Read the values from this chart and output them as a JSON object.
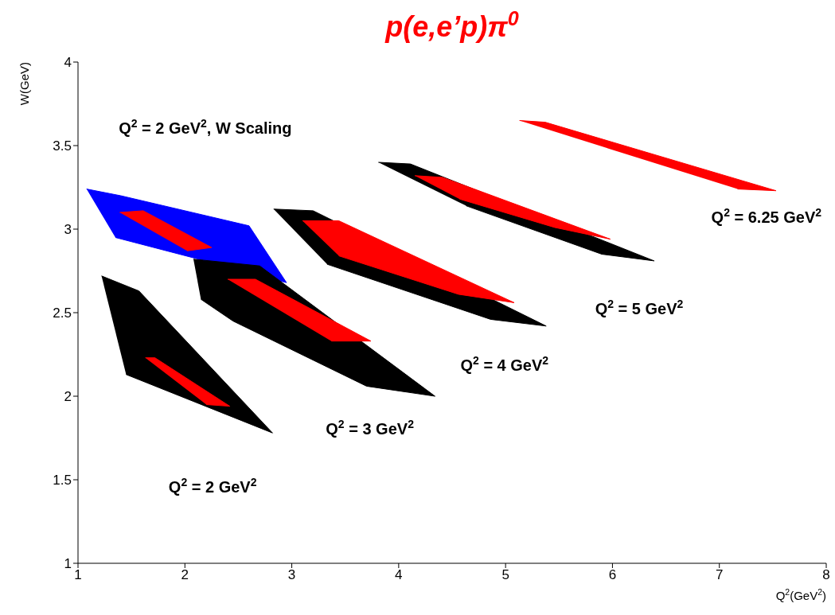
{
  "chart_data": {
    "type": "line",
    "title": "p(e,e’p)π$^{0}$",
    "xlabel": "Q$^{2}$(GeV$^{2}$)",
    "ylabel": "W(GeV)",
    "xlim": [
      1,
      8
    ],
    "xticks": [
      1,
      2,
      3,
      4,
      5,
      6,
      7,
      8
    ],
    "ylim": [
      1,
      4
    ],
    "yticks": [
      1,
      1.5,
      2,
      2.5,
      3,
      3.5,
      4
    ],
    "grid": false,
    "marker": "none",
    "series": [
      {
        "color": "#000000",
        "x": [
          1.22,
          1.57,
          2.82,
          1.45
        ],
        "values": [
          2.72,
          2.63,
          1.78,
          2.13
        ]
      },
      {
        "color": "#ff0000",
        "x": [
          1.63,
          1.72,
          2.42,
          2.2
        ],
        "values": [
          2.23,
          2.23,
          1.94,
          1.95
        ]
      },
      {
        "color": "#0000ff",
        "x": [
          1.08,
          1.4,
          2.6,
          2.95,
          2.25,
          1.35
        ],
        "values": [
          3.24,
          3.2,
          3.02,
          2.68,
          2.8,
          2.95
        ]
      },
      {
        "color": "#ff0000",
        "x": [
          1.39,
          1.61,
          2.25,
          2.02
        ],
        "values": [
          3.1,
          3.11,
          2.89,
          2.87
        ]
      },
      {
        "color": "#000000",
        "x": [
          2.08,
          2.7,
          4.34,
          3.7,
          2.45,
          2.15
        ],
        "values": [
          2.82,
          2.78,
          2.0,
          2.06,
          2.45,
          2.58
        ]
      },
      {
        "color": "#ff0000",
        "x": [
          2.4,
          2.66,
          3.74,
          3.37
        ],
        "values": [
          2.7,
          2.7,
          2.33,
          2.33
        ]
      },
      {
        "color": "#000000",
        "x": [
          2.83,
          3.2,
          5.38,
          4.86,
          3.33
        ],
        "values": [
          3.12,
          3.11,
          2.42,
          2.46,
          2.79
        ]
      },
      {
        "color": "#ff0000",
        "x": [
          3.1,
          3.44,
          5.08,
          4.56,
          3.44
        ],
        "values": [
          3.05,
          3.05,
          2.56,
          2.61,
          2.84
        ]
      },
      {
        "color": "#000000",
        "x": [
          3.81,
          4.11,
          6.39,
          5.9,
          4.63
        ],
        "values": [
          3.4,
          3.39,
          2.81,
          2.85,
          3.14
        ]
      },
      {
        "color": "#ff0000",
        "x": [
          4.15,
          4.41,
          5.98,
          5.46,
          4.57
        ],
        "values": [
          3.32,
          3.31,
          2.94,
          3.01,
          3.18
        ]
      },
      {
        "color": "#ff0000",
        "x": [
          5.13,
          5.37,
          7.53,
          7.17
        ],
        "values": [
          3.65,
          3.64,
          3.23,
          3.24
        ]
      }
    ],
    "annotations": [
      "Q$^{2}$ = 2 GeV$^{2}$, W Scaling",
      "Q$^{2}$ = 2 GeV$^{2}$",
      "Q$^{2}$ = 3 GeV$^{2}$",
      "Q$^{2}$ = 4 GeV$^{2}$",
      "Q$^{2}$ = 5 GeV$^{2}$",
      "Q$^{2}$ = 6.25 GeV$^{2}$"
    ]
  }
}
